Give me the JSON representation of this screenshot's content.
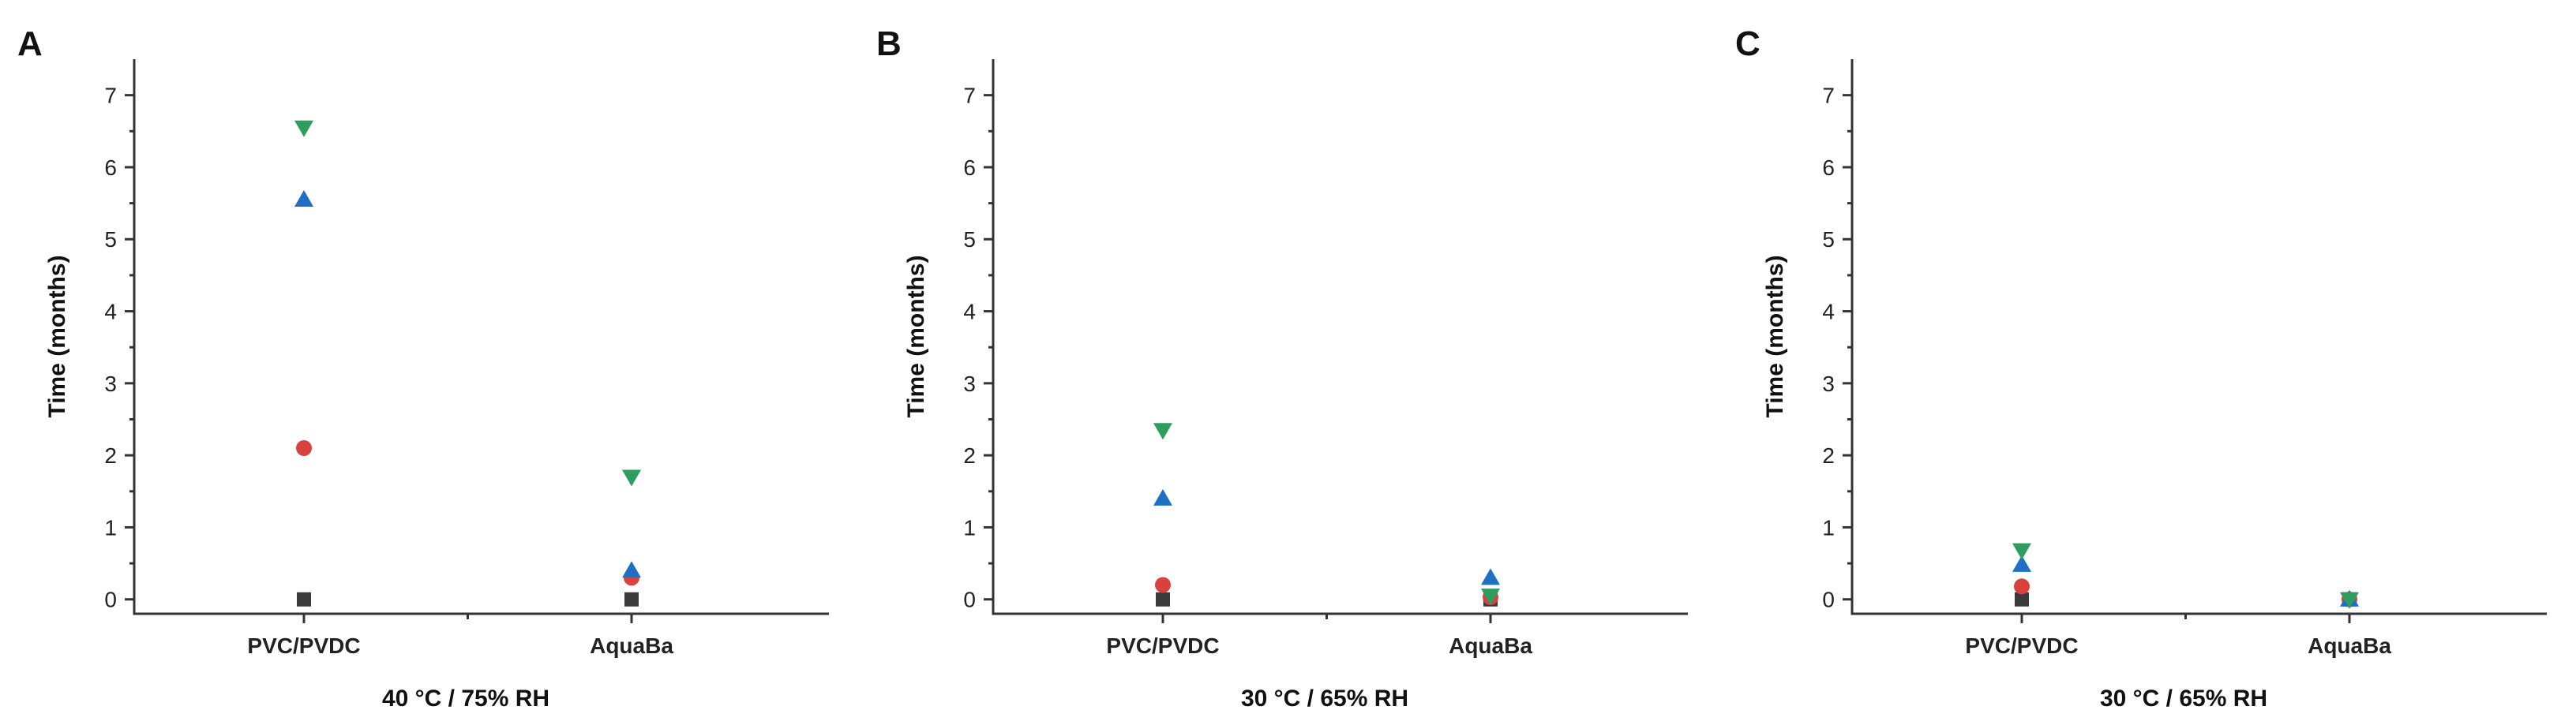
{
  "chart_data": [
    {
      "type": "scatter",
      "panel_label": "A",
      "categories": [
        "PVC/PVDC",
        "AquaBa"
      ],
      "ylabel": "Time (months)",
      "xlabel": "40 °C / 75% RH",
      "ylim": [
        -0.2,
        7.5
      ],
      "yticks": [
        0,
        1,
        2,
        3,
        4,
        5,
        6,
        7
      ],
      "series": [
        {
          "marker": "square",
          "color": "#3a3a3a",
          "values": [
            0,
            0
          ]
        },
        {
          "marker": "circle",
          "color": "#d9413d",
          "values": [
            2.1,
            0.3
          ]
        },
        {
          "marker": "triangle-up",
          "color": "#1f6fc5",
          "values": [
            5.55,
            0.4
          ]
        },
        {
          "marker": "triangle-down",
          "color": "#2e9e5e",
          "values": [
            6.55,
            1.7
          ]
        }
      ]
    },
    {
      "type": "scatter",
      "panel_label": "B",
      "categories": [
        "PVC/PVDC",
        "AquaBa"
      ],
      "ylabel": "Time (months)",
      "xlabel": "30 °C / 65% RH",
      "ylim": [
        -0.2,
        7.5
      ],
      "yticks": [
        0,
        1,
        2,
        3,
        4,
        5,
        6,
        7
      ],
      "series": [
        {
          "marker": "square",
          "color": "#3a3a3a",
          "values": [
            0,
            0
          ]
        },
        {
          "marker": "circle",
          "color": "#d9413d",
          "values": [
            0.2,
            0.03
          ]
        },
        {
          "marker": "triangle-up",
          "color": "#1f6fc5",
          "values": [
            1.4,
            0.3
          ]
        },
        {
          "marker": "triangle-down",
          "color": "#2e9e5e",
          "values": [
            2.35,
            0.05
          ]
        }
      ]
    },
    {
      "type": "scatter",
      "panel_label": "C",
      "categories": [
        "PVC/PVDC",
        "AquaBa"
      ],
      "ylabel": "Time (months)",
      "xlabel": "30 °C / 65% RH",
      "ylim": [
        -0.2,
        7.5
      ],
      "yticks": [
        0,
        1,
        2,
        3,
        4,
        5,
        6,
        7
      ],
      "series": [
        {
          "marker": "square",
          "color": "#3a3a3a",
          "values": [
            0,
            0
          ]
        },
        {
          "marker": "circle",
          "color": "#d9413d",
          "values": [
            0.18,
            0
          ]
        },
        {
          "marker": "triangle-up",
          "color": "#1f6fc5",
          "values": [
            0.48,
            0
          ]
        },
        {
          "marker": "triangle-down",
          "color": "#2e9e5e",
          "values": [
            0.68,
            0
          ]
        }
      ]
    }
  ]
}
